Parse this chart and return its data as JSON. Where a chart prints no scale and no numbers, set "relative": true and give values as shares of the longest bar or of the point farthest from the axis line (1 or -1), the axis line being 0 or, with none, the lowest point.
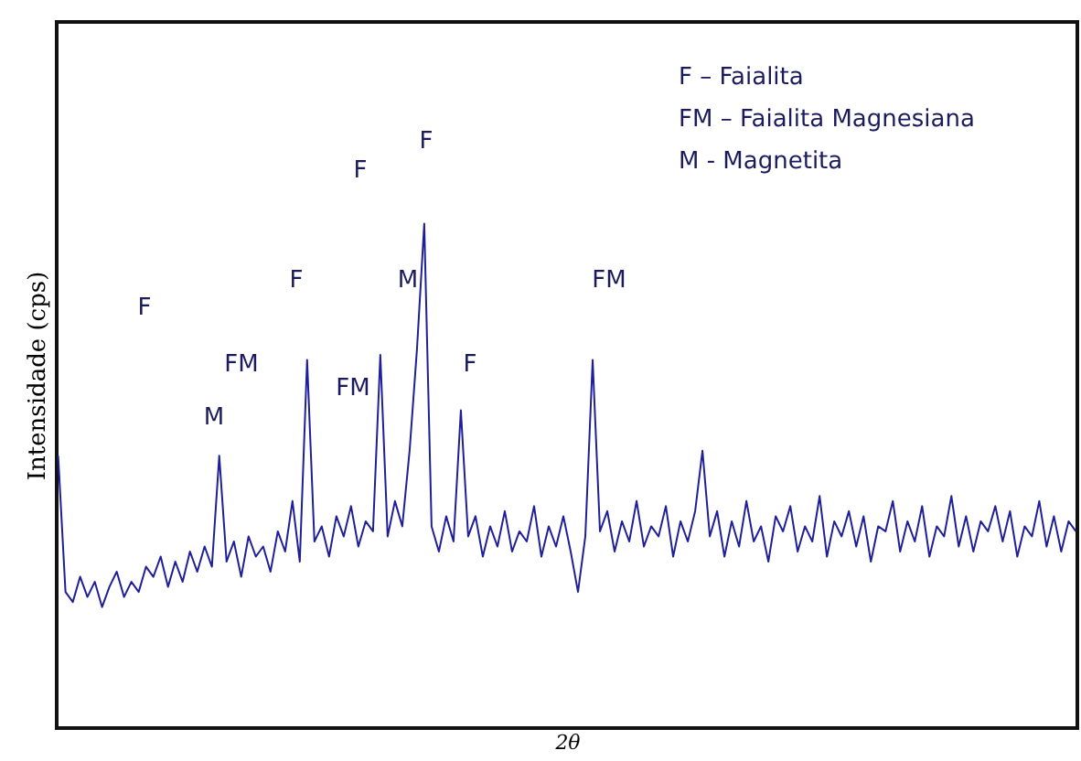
{
  "chart_data": {
    "type": "line",
    "relative": true,
    "xlabel": "2θ",
    "ylabel": "Intensidade (cps)",
    "categories": [
      null,
      null,
      null,
      null,
      null,
      null,
      null,
      null,
      null,
      null,
      null,
      null,
      null,
      null,
      null,
      null,
      null,
      null,
      null,
      null,
      null,
      null,
      null,
      null,
      null,
      null,
      null,
      null,
      null,
      null,
      null,
      null,
      null,
      null,
      null,
      null,
      null,
      null,
      null,
      null,
      null,
      null,
      null,
      null,
      null,
      null,
      null,
      null,
      null,
      null,
      null,
      null,
      null,
      null,
      null,
      null,
      null,
      null,
      null,
      null,
      null,
      null,
      null,
      null,
      null,
      null,
      null,
      null,
      null,
      null,
      null,
      null,
      null,
      null,
      null,
      null,
      null,
      null,
      null,
      null,
      null,
      null,
      null,
      null,
      null,
      null,
      null,
      null,
      null,
      null,
      null,
      null,
      null,
      null,
      null,
      null,
      null,
      null,
      null,
      null,
      null,
      null,
      null,
      null,
      null,
      null,
      null,
      null,
      null,
      null,
      null,
      null,
      null,
      null,
      null,
      null,
      null,
      null,
      null,
      null,
      null,
      null,
      null,
      null,
      null,
      null,
      null,
      null,
      null,
      null,
      null,
      null,
      null,
      null,
      null,
      null,
      null,
      null,
      null,
      null
    ],
    "series": [
      {
        "color": "#1f1f9a",
        "values": [
          0.54,
          0.27,
          0.25,
          0.3,
          0.26,
          0.29,
          0.24,
          0.28,
          0.31,
          0.26,
          0.29,
          0.27,
          0.32,
          0.3,
          0.34,
          0.28,
          0.33,
          0.29,
          0.35,
          0.31,
          0.36,
          0.32,
          0.54,
          0.33,
          0.37,
          0.3,
          0.38,
          0.34,
          0.36,
          0.31,
          0.39,
          0.35,
          0.45,
          0.33,
          0.73,
          0.37,
          0.4,
          0.34,
          0.42,
          0.38,
          0.44,
          0.36,
          0.41,
          0.39,
          0.74,
          0.38,
          0.45,
          0.4,
          0.55,
          0.75,
          1.0,
          0.4,
          0.35,
          0.42,
          0.37,
          0.63,
          0.38,
          0.42,
          0.34,
          0.4,
          0.36,
          0.43,
          0.35,
          0.39,
          0.37,
          0.44,
          0.34,
          0.4,
          0.36,
          0.42,
          0.35,
          0.27,
          0.38,
          0.73,
          0.39,
          0.43,
          0.35,
          0.41,
          0.37,
          0.45,
          0.36,
          0.4,
          0.38,
          0.44,
          0.34,
          0.41,
          0.37,
          0.43,
          0.55,
          0.38,
          0.43,
          0.34,
          0.41,
          0.36,
          0.45,
          0.37,
          0.4,
          0.33,
          0.42,
          0.39,
          0.44,
          0.35,
          0.4,
          0.37,
          0.46,
          0.34,
          0.41,
          0.38,
          0.43,
          0.36,
          0.42,
          0.33,
          0.4,
          0.39,
          0.45,
          0.35,
          0.41,
          0.37,
          0.44,
          0.34,
          0.4,
          0.38,
          0.46,
          0.36,
          0.42,
          0.35,
          0.41,
          0.39,
          0.44,
          0.37,
          0.43,
          0.34,
          0.4,
          0.38,
          0.45,
          0.36,
          0.42,
          0.35,
          0.41,
          0.39
        ]
      }
    ],
    "annotations": [
      "F",
      "M",
      "FM",
      "F",
      "F",
      "F",
      "M",
      "FM",
      "F",
      "FM",
      "F – Faialita",
      "FM – Faialita Magnesiana",
      "M - Magnetita"
    ]
  }
}
